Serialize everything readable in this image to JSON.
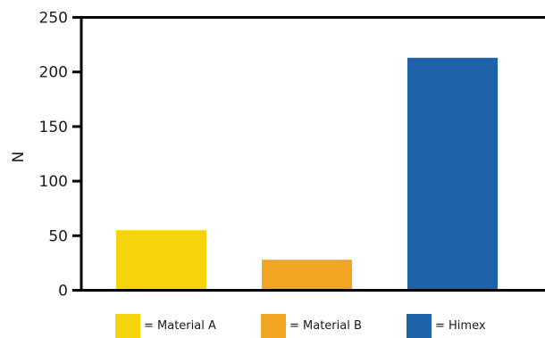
{
  "chart_data": {
    "type": "bar",
    "title": "",
    "xlabel": "",
    "ylabel": "N",
    "ylim": [
      0,
      250
    ],
    "yticks": [
      0,
      50,
      100,
      150,
      200,
      250
    ],
    "categories": [
      "Material A",
      "Material B",
      "Himex"
    ],
    "values": [
      55,
      28,
      213
    ],
    "colors": [
      "#f5d40b",
      "#f0a623",
      "#1c63aa"
    ],
    "grid": false,
    "legend": {
      "placement": "bottom",
      "entries": [
        {
          "label": "= Material A",
          "color": "#f5d40b"
        },
        {
          "label": "= Material B",
          "color": "#f0a623"
        },
        {
          "label": "= Himex",
          "color": "#1c63aa"
        }
      ]
    }
  }
}
